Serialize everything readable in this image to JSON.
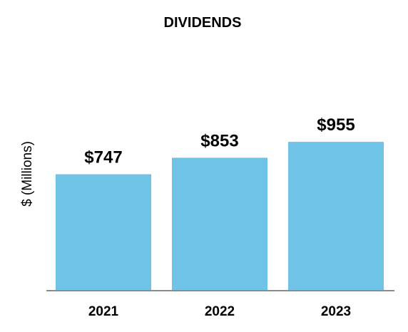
{
  "chart_data": {
    "type": "bar",
    "title": "DIVIDENDS",
    "xlabel": "",
    "ylabel": "$ (Millions)",
    "categories": [
      "2021",
      "2022",
      "2023"
    ],
    "values": [
      747,
      853,
      955
    ],
    "data_labels": [
      "$747",
      "$853",
      "$955"
    ],
    "ylim": [
      0,
      1120
    ],
    "grid": false,
    "legend": "none",
    "colors": {
      "bar": "#6EC3E6",
      "axis": "#8C8C8C",
      "text": "#000000"
    }
  }
}
